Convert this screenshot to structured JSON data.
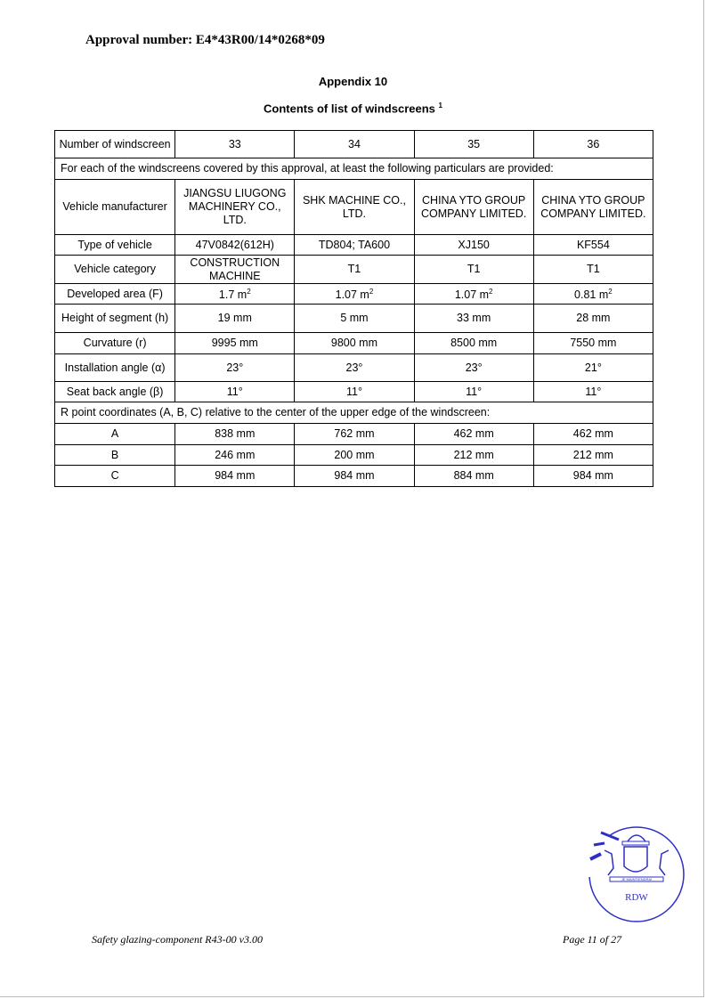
{
  "header": {
    "approval": "Approval number: E4*43R00/14*0268*09"
  },
  "appendix": "Appendix 10",
  "subtitle": "Contents of list of windscreens",
  "subtitle_footnote": "1",
  "table": {
    "header_label": "Number of windscreen",
    "numbers": [
      "33",
      "34",
      "35",
      "36"
    ],
    "particulars_note": "For each of the windscreens covered by this approval, at least the following particulars are provided:",
    "rows": [
      {
        "label": "Vehicle manufacturer",
        "values": [
          "JIANGSU LIUGONG MACHINERY CO., LTD.",
          "SHK MACHINE CO., LTD.",
          "CHINA YTO GROUP COMPANY LIMITED.",
          "CHINA YTO GROUP COMPANY LIMITED."
        ]
      },
      {
        "label": "Type of vehicle",
        "values": [
          "47V0842(612H)",
          "TD804; TA600",
          "XJ150",
          "KF554"
        ]
      },
      {
        "label": "Vehicle category",
        "values": [
          "CONSTRUCTION MACHINE",
          "T1",
          "T1",
          "T1"
        ]
      },
      {
        "label": "Developed area (F)",
        "values": [
          "1.7 m",
          "1.07 m",
          "1.07 m",
          "0.81 m"
        ],
        "unit_sup": "2"
      },
      {
        "label": "Height of segment (h)",
        "values": [
          "19 mm",
          "5 mm",
          "33 mm",
          "28 mm"
        ]
      },
      {
        "label": "Curvature (r)",
        "values": [
          "9995 mm",
          "9800 mm",
          "8500 mm",
          "7550 mm"
        ]
      },
      {
        "label": "Installation angle (α)",
        "values": [
          "23°",
          "23°",
          "23°",
          "21°"
        ]
      },
      {
        "label": "Seat back angle (β)",
        "values": [
          "11°",
          "11°",
          "11°",
          "11°"
        ]
      }
    ],
    "rpoint_note": "R point coordinates (A, B, C) relative to the center of the upper edge of the windscreen:",
    "rpoints": [
      {
        "label": "A",
        "values": [
          "838 mm",
          "762 mm",
          "462 mm",
          "462 mm"
        ]
      },
      {
        "label": "B",
        "values": [
          "246 mm",
          "200 mm",
          "212 mm",
          "212 mm"
        ]
      },
      {
        "label": "C",
        "values": [
          "984 mm",
          "984 mm",
          "884 mm",
          "984 mm"
        ]
      }
    ]
  },
  "stamp": {
    "text": "RDW",
    "motto": "JE MAINTIENDRAI",
    "color": "#2d2fc4"
  },
  "footer": {
    "left": "Safety glazing-component R43-00 v3.00",
    "right": "Page 11 of 27"
  }
}
